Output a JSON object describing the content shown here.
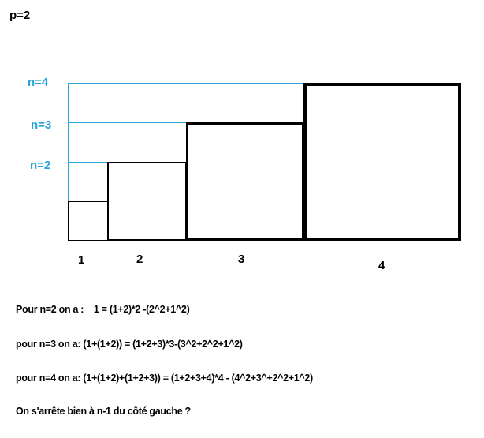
{
  "title": "p=2",
  "colors": {
    "guide": "#29a3d8",
    "square": "#000000"
  },
  "level_labels": [
    "n=2",
    "n=3",
    "n=4"
  ],
  "square_labels": [
    "1",
    "2",
    "3",
    "4"
  ],
  "lines": [
    "Pour n=2 on a :    1 = (1+2)*2 -(2^2+1^2)",
    "pour n=3 on a: (1+(1+2)) = (1+2+3)*3-(3^2+2^2+1^2)",
    "pour n=4 on a: (1+(1+2)+(1+2+3)) = (1+2+3+4)*4 - (4^2+3^+2^2+1^2)",
    "On s'arrête bien à n-1 du côté gauche ?"
  ]
}
